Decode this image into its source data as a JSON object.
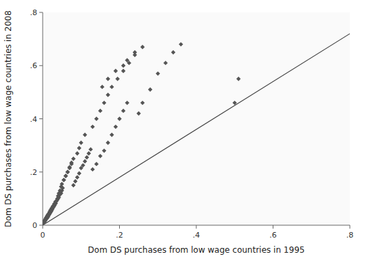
{
  "chart_data": {
    "type": "scatter",
    "xlabel": "Dom DS purchases from low wage countries in 1995",
    "ylabel": "Dom DS purchases from low wage countries in 2008",
    "xlim": [
      0,
      0.8
    ],
    "ylim": [
      0,
      0.8
    ],
    "xticks": [
      0,
      {
        "value": 0.2,
        "label": ".2"
      },
      {
        "value": 0.4,
        "label": ".4"
      },
      {
        "value": 0.6,
        "label": ".6"
      },
      {
        "value": 0.8,
        "label": ".8"
      }
    ],
    "yticks": [
      0,
      {
        "value": 0.2,
        "label": ".2"
      },
      {
        "value": 0.4,
        "label": ".4"
      },
      {
        "value": 0.6,
        "label": ".6"
      },
      {
        "value": 0.8,
        "label": ".8"
      }
    ],
    "grid": false,
    "series": [
      {
        "type": "scatter",
        "color": "#555555",
        "marker": "diamond",
        "x": [
          0.005,
          0.007,
          0.01,
          0.012,
          0.015,
          0.018,
          0.02,
          0.022,
          0.025,
          0.028,
          0.03,
          0.032,
          0.035,
          0.038,
          0.04,
          0.042,
          0.045,
          0.048,
          0.05,
          0.052,
          0.008,
          0.01,
          0.013,
          0.016,
          0.019,
          0.022,
          0.025,
          0.028,
          0.031,
          0.034,
          0.003,
          0.005,
          0.008,
          0.01,
          0.012,
          0.015,
          0.018,
          0.02,
          0.023,
          0.026,
          0.006,
          0.009,
          0.012,
          0.015,
          0.018,
          0.021,
          0.024,
          0.027,
          0.03,
          0.033,
          0.004,
          0.007,
          0.011,
          0.014,
          0.017,
          0.02,
          0.023,
          0.026,
          0.029,
          0.032,
          0.002,
          0.004,
          0.006,
          0.009,
          0.013,
          0.016,
          0.019,
          0.022,
          0.035,
          0.038,
          0.04,
          0.042,
          0.045,
          0.048,
          0.05,
          0.055,
          0.06,
          0.065,
          0.07,
          0.075,
          0.08,
          0.085,
          0.09,
          0.095,
          0.1,
          0.105,
          0.11,
          0.115,
          0.12,
          0.125,
          0.055,
          0.06,
          0.065,
          0.07,
          0.075,
          0.08,
          0.09,
          0.095,
          0.1,
          0.11,
          0.13,
          0.14,
          0.15,
          0.16,
          0.17,
          0.18,
          0.19,
          0.2,
          0.21,
          0.22,
          0.13,
          0.14,
          0.15,
          0.16,
          0.17,
          0.18,
          0.195,
          0.21,
          0.225,
          0.24,
          0.25,
          0.26,
          0.28,
          0.3,
          0.32,
          0.34,
          0.36,
          0.5,
          0.51,
          0.155,
          0.17,
          0.19,
          0.21,
          0.22,
          0.24,
          0.26
        ],
        "values": [
          0.018,
          0.022,
          0.03,
          0.035,
          0.04,
          0.045,
          0.05,
          0.055,
          0.06,
          0.07,
          0.075,
          0.08,
          0.09,
          0.095,
          0.1,
          0.105,
          0.115,
          0.12,
          0.13,
          0.14,
          0.025,
          0.03,
          0.038,
          0.042,
          0.048,
          0.055,
          0.062,
          0.068,
          0.075,
          0.082,
          0.01,
          0.015,
          0.022,
          0.028,
          0.032,
          0.04,
          0.048,
          0.055,
          0.062,
          0.07,
          0.02,
          0.028,
          0.035,
          0.042,
          0.05,
          0.058,
          0.065,
          0.072,
          0.08,
          0.088,
          0.012,
          0.018,
          0.025,
          0.032,
          0.04,
          0.048,
          0.055,
          0.065,
          0.072,
          0.08,
          0.008,
          0.012,
          0.018,
          0.025,
          0.03,
          0.038,
          0.045,
          0.052,
          0.09,
          0.1,
          0.11,
          0.12,
          0.13,
          0.145,
          0.155,
          0.17,
          0.185,
          0.2,
          0.215,
          0.23,
          0.15,
          0.165,
          0.18,
          0.195,
          0.215,
          0.225,
          0.24,
          0.255,
          0.27,
          0.285,
          0.17,
          0.185,
          0.2,
          0.218,
          0.235,
          0.25,
          0.27,
          0.29,
          0.31,
          0.34,
          0.21,
          0.23,
          0.26,
          0.28,
          0.31,
          0.34,
          0.37,
          0.4,
          0.43,
          0.46,
          0.37,
          0.4,
          0.43,
          0.46,
          0.49,
          0.52,
          0.55,
          0.58,
          0.61,
          0.64,
          0.42,
          0.46,
          0.51,
          0.57,
          0.61,
          0.65,
          0.68,
          0.46,
          0.55,
          0.52,
          0.55,
          0.58,
          0.6,
          0.62,
          0.65,
          0.67
        ]
      },
      {
        "type": "line",
        "color": "#444444",
        "line_style": "solid",
        "x": [
          0,
          0.8
        ],
        "values": [
          0,
          0.72
        ]
      }
    ]
  }
}
